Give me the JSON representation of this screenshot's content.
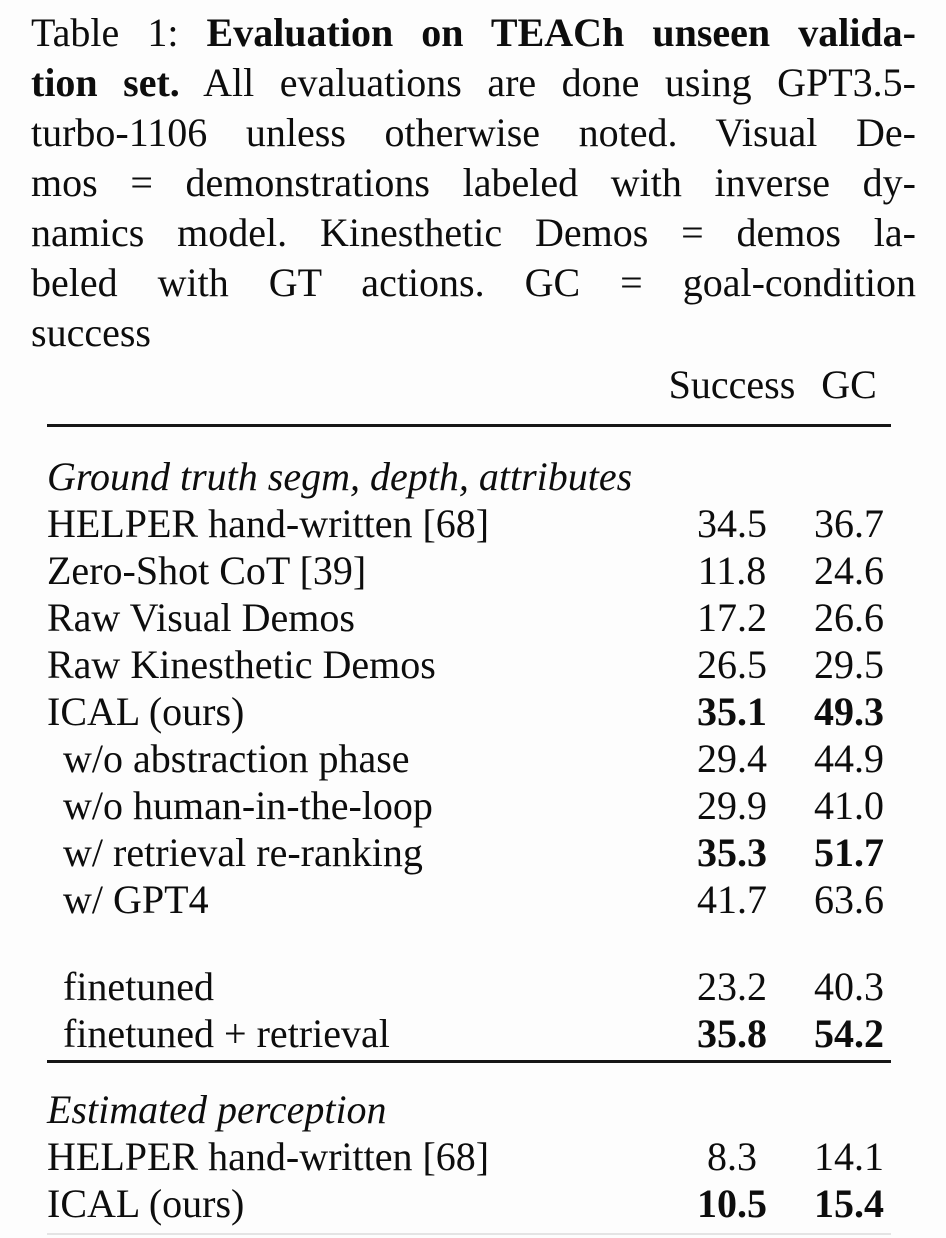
{
  "caption": {
    "label_prefix": "Table 1:",
    "lines": [
      [
        {
          "t": "Table 1: ",
          "b": false
        },
        {
          "t": "Evaluation on TEACh unseen valida-",
          "b": true
        }
      ],
      [
        {
          "t": "tion set.",
          "b": true
        },
        {
          "t": " All evaluations are done using GPT3.5-",
          "b": false
        }
      ],
      [
        {
          "t": "turbo-1106 unless otherwise noted. Visual De-",
          "b": false
        }
      ],
      [
        {
          "t": "mos = demonstrations labeled with inverse dy-",
          "b": false
        }
      ],
      [
        {
          "t": "namics model. Kinesthetic Demos = demos la-",
          "b": false
        }
      ],
      [
        {
          "t": "beled with GT actions. GC = goal-condition",
          "b": false
        }
      ],
      [
        {
          "t": "success",
          "b": false
        }
      ]
    ]
  },
  "table": {
    "header": {
      "col1": "Success",
      "col2": "GC"
    },
    "sections": [
      {
        "title": "Ground truth segm, depth, attributes",
        "rows": [
          {
            "label": "HELPER hand-written [68]",
            "success": "34.5",
            "gc": "36.7",
            "indent": false,
            "bold": false
          },
          {
            "label": "Zero-Shot CoT [39]",
            "success": "11.8",
            "gc": "24.6",
            "indent": false,
            "bold": false
          },
          {
            "label": "Raw Visual Demos",
            "success": "17.2",
            "gc": "26.6",
            "indent": false,
            "bold": false
          },
          {
            "label": "Raw Kinesthetic Demos",
            "success": "26.5",
            "gc": "29.5",
            "indent": false,
            "bold": false
          },
          {
            "label": "ICAL (ours)",
            "success": "35.1",
            "gc": "49.3",
            "indent": false,
            "bold": true
          },
          {
            "label": "w/o abstraction phase",
            "success": "29.4",
            "gc": "44.9",
            "indent": true,
            "bold": false
          },
          {
            "label": "w/o human-in-the-loop",
            "success": "29.9",
            "gc": "41.0",
            "indent": true,
            "bold": false
          },
          {
            "label": "w/ retrieval re-ranking",
            "success": "35.3",
            "gc": "51.7",
            "indent": true,
            "bold": true
          },
          {
            "label": "w/ GPT4",
            "success": "41.7",
            "gc": "63.6",
            "indent": true,
            "bold": false
          },
          {
            "label": "finetuned",
            "success": "23.2",
            "gc": "40.3",
            "indent": true,
            "bold": false
          },
          {
            "label": "finetuned + retrieval",
            "success": "35.8",
            "gc": "54.2",
            "indent": true,
            "bold": true
          }
        ]
      },
      {
        "title": "Estimated perception",
        "rows": [
          {
            "label": "HELPER hand-written [68]",
            "success": "8.3",
            "gc": "14.1",
            "indent": false,
            "bold": false
          },
          {
            "label": "ICAL (ours)",
            "success": "10.5",
            "gc": "15.4",
            "indent": false,
            "bold": true
          }
        ]
      }
    ]
  },
  "colors": {
    "background": "#fdfdfd",
    "text": "#0d0d0d",
    "rule": "#161616",
    "faint_rule": "#e4e4e4"
  }
}
